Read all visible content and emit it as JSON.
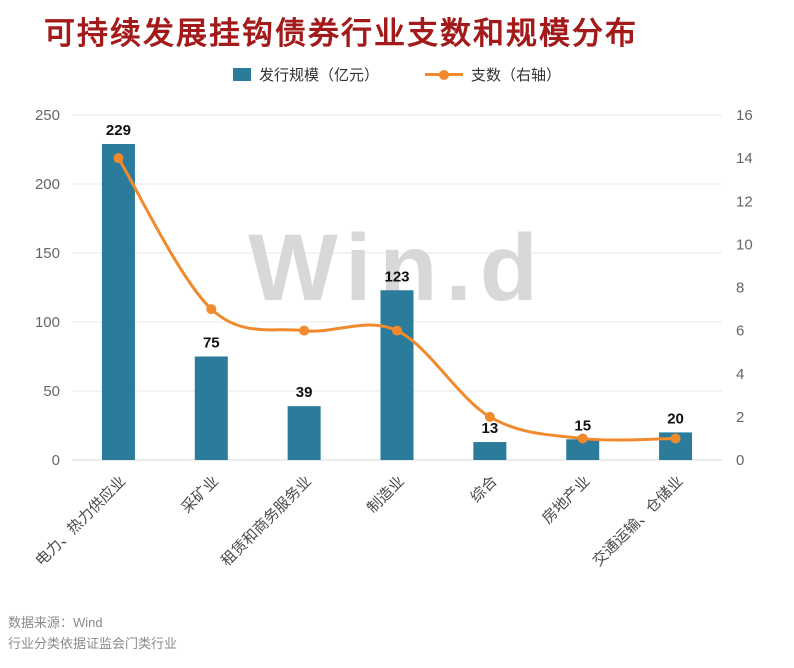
{
  "title": "可持续发展挂钩债券行业支数和规模分布",
  "legend": {
    "bar": "发行规模（亿元）",
    "line": "支数（右轴）"
  },
  "watermark": "Win.d",
  "footer": {
    "source": "数据来源：Wind",
    "note": "行业分类依据证监会门类行业"
  },
  "colors": {
    "title": "#a21a1a",
    "bar": "#2b7b9b",
    "line": "#f08a2c",
    "grid": "#e8e8e8",
    "axis_line": "#d9d9d9",
    "axis_text": "#666666",
    "category_text": "#4a4a4a",
    "value_text": "#111111",
    "watermark": "#d8d8d8"
  },
  "chart_data": {
    "type": "bar+line",
    "title": "可持续发展挂钩债券行业支数和规模分布",
    "categories": [
      "电力、热力供应业",
      "采矿业",
      "租赁和商务服务业",
      "制造业",
      "综合",
      "房地产业",
      "交通运输、仓储业"
    ],
    "series": [
      {
        "name": "发行规模（亿元）",
        "type": "bar",
        "axis": "left",
        "values": [
          229,
          75,
          39,
          123,
          13,
          15,
          20
        ]
      },
      {
        "name": "支数（右轴）",
        "type": "line",
        "axis": "right",
        "values": [
          14,
          7,
          6,
          6,
          2,
          1,
          1
        ]
      }
    ],
    "left_axis": {
      "min": 0,
      "max": 250,
      "step": 50
    },
    "right_axis": {
      "min": 0,
      "max": 16,
      "step": 2
    },
    "grid": true,
    "legend_position": "top"
  }
}
